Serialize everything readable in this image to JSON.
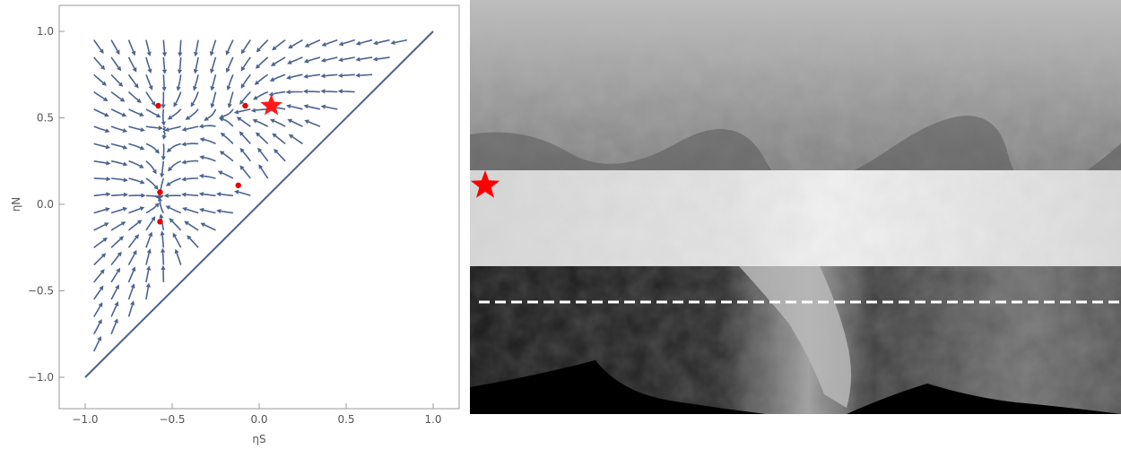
{
  "chart_data": {
    "type": "streamplot",
    "xlabel": "ηS",
    "ylabel": "ηN",
    "xlim": [
      -1.15,
      1.15
    ],
    "ylim": [
      -1.15,
      1.15
    ],
    "x_ticks": [
      "-1.0",
      "-0.5",
      "0.0",
      "0.5",
      "1.0"
    ],
    "y_ticks": [
      "-1.0",
      "-0.5",
      "0.0",
      "0.5",
      "1.0"
    ],
    "domain": "ηN ≥ ηS, |ηS| ≤ 1, |ηN| ≤ 1",
    "boundary_line": {
      "from": [
        -1.0,
        -1.0
      ],
      "to": [
        1.0,
        1.0
      ]
    },
    "fixed_points": [
      {
        "x": -0.58,
        "y": 0.57
      },
      {
        "x": -0.08,
        "y": 0.57
      },
      {
        "x": -0.57,
        "y": 0.07
      },
      {
        "x": -0.12,
        "y": 0.11
      },
      {
        "x": -0.57,
        "y": -0.1
      }
    ],
    "highlight_point": {
      "x": 0.07,
      "y": 0.57,
      "marker": "star"
    },
    "colors": {
      "stream": "#4a638f",
      "fixed_point": "#e60000",
      "axis": "#999999",
      "star": "#ff1a1a"
    }
  },
  "map_panel": {
    "highlight_band": "ηN range shown as lightened latitude band",
    "dashed_line_color": "#ffffff",
    "star_marker_color": "#ff0000"
  }
}
